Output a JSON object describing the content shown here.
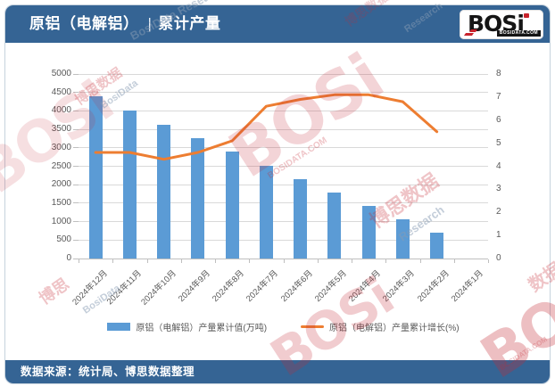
{
  "header": {
    "title_left": "原铝（电解铝）",
    "title_separator": "|",
    "title_right": "累计产量",
    "logo": {
      "brand": "BOSi",
      "domain": "BOSIDATA.COM"
    }
  },
  "footer": {
    "source": "数据来源：统计局、博思数据整理"
  },
  "watermarks": {
    "brand": "BOSi",
    "brand_cn": "博思数据",
    "brand_cn_short": "博思",
    "data_cn": "数据",
    "domain": "BOSIDATA.COM",
    "research": "BosiData Research",
    "research_short": "Research",
    "brand_en": "BosiData"
  },
  "chart_data": {
    "type": "bar",
    "subtype": "bar+line combo, dual axis",
    "categories": [
      "2024年12月",
      "2024年11月",
      "2024年10月",
      "2024年9月",
      "2024年8月",
      "2024年7月",
      "2024年6月",
      "2024年5月",
      "2024年4月",
      "2024年3月",
      "2024年2月",
      "2024年1月"
    ],
    "series": [
      {
        "name": "原铝（电解铝）产量累计值(万吨)",
        "type": "bar",
        "axis": "left",
        "color": "#5B9BD5",
        "values": [
          4400,
          4010,
          3630,
          3260,
          2890,
          2520,
          2150,
          1790,
          1420,
          1070,
          710,
          null
        ]
      },
      {
        "name": "原铝（电解铝）产量累计增长(%)",
        "type": "line",
        "axis": "right",
        "color": "#ED7D31",
        "values": [
          4.6,
          4.6,
          4.3,
          4.6,
          5.1,
          6.6,
          6.9,
          7.1,
          7.1,
          6.8,
          5.5,
          null
        ]
      }
    ],
    "left_axis": {
      "min": 0,
      "max": 5000,
      "step": 500
    },
    "right_axis": {
      "min": 0,
      "max": 8,
      "step": 1
    },
    "grid": true,
    "legend_position": "bottom",
    "x_label_rotation": -45,
    "colors": {
      "header_bar": "#356494",
      "grid": "#d9d9d9",
      "axis_text": "#595959",
      "logo_red": "#c8232c"
    }
  }
}
